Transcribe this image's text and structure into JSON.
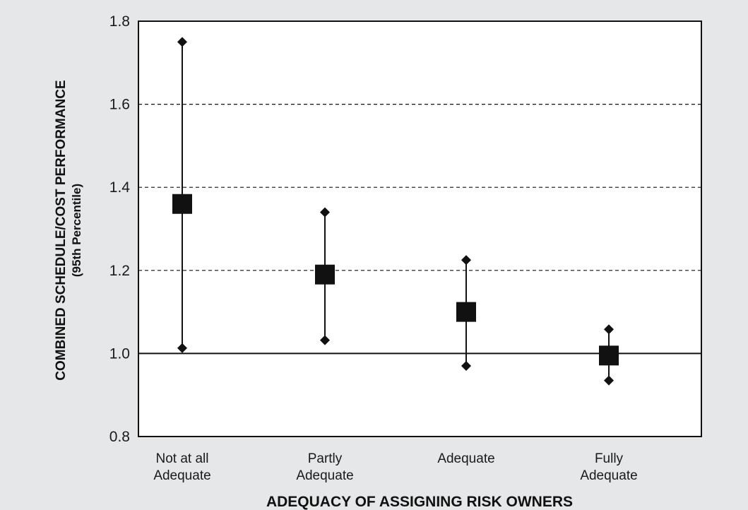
{
  "chart_data": {
    "type": "scatter",
    "xlabel": "ADEQUACY OF ASSIGNING RISK OWNERS",
    "ylabel": "COMBINED SCHEDULE/COST PERFORMANCE",
    "ylabel_sub": "(95th Percentile)",
    "ylim": [
      0.8,
      1.8
    ],
    "yticks": [
      "0.8",
      "1.0",
      "1.2",
      "1.4",
      "1.6",
      "1.8"
    ],
    "grid": "dashed horizontal at 1.2, 1.4, 1.6; solid reference line at 1.0",
    "categories": [
      [
        "Not at all",
        "Adequate"
      ],
      [
        "Partly",
        "Adequate"
      ],
      [
        "Adequate"
      ],
      [
        "Fully",
        "Adequate"
      ]
    ],
    "series": [
      {
        "marker": "square",
        "values": [
          1.36,
          1.19,
          1.1,
          0.995
        ]
      },
      {
        "marker": "diamond-upper",
        "values": [
          1.75,
          1.34,
          1.225,
          1.058
        ]
      },
      {
        "marker": "diamond-lower",
        "values": [
          1.013,
          1.032,
          0.97,
          0.935
        ]
      }
    ],
    "colors": {
      "background": "#e6e7e8",
      "plot": "#ffffff",
      "ink": "#111111"
    }
  }
}
